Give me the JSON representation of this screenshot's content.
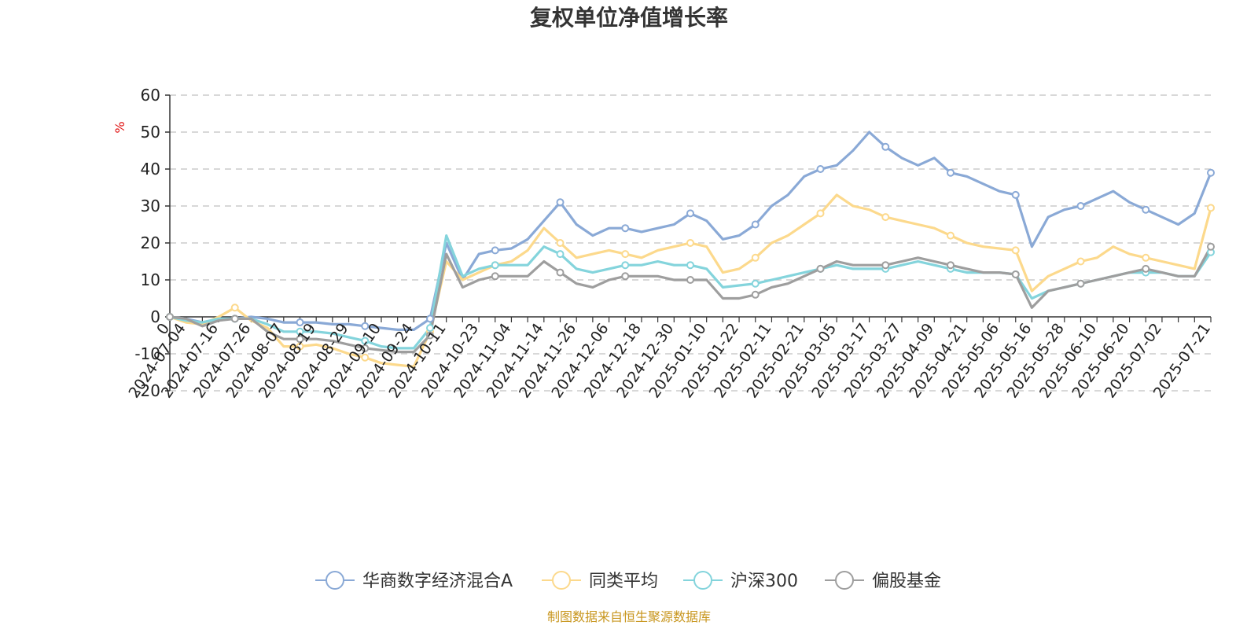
{
  "chart_data": {
    "type": "line",
    "title": "复权单位净值增长率",
    "ylabel": "%",
    "ylim": [
      -20,
      60
    ],
    "yticks": [
      -20,
      -10,
      0,
      10,
      20,
      30,
      40,
      50,
      60
    ],
    "grid": true,
    "legend_position": "bottom",
    "x_tick_labels": [
      "0",
      "2024-07-04",
      "2024-07-16",
      "2024-07-26",
      "2024-08-07",
      "2024-08-19",
      "2024-08-29",
      "2024-09-10",
      "2024-09-24",
      "2024-10-11",
      "2024-10-23",
      "2024-11-04",
      "2024-11-14",
      "2024-11-26",
      "2024-12-06",
      "2024-12-18",
      "2024-12-30",
      "2025-01-10",
      "2025-01-22",
      "2025-02-11",
      "2025-02-21",
      "2025-03-05",
      "2025-03-17",
      "2025-03-27",
      "2025-04-09",
      "2025-04-21",
      "2025-05-06",
      "2025-05-16",
      "2025-05-28",
      "2025-06-10",
      "2025-06-20",
      "2025-07-02",
      "2025-07-21"
    ],
    "x_tick_positions": [
      0,
      1,
      3,
      5,
      7,
      9,
      11,
      13,
      15,
      17,
      19,
      21,
      23,
      25,
      27,
      29,
      31,
      33,
      35,
      37,
      39,
      41,
      43,
      45,
      47,
      49,
      51,
      53,
      55,
      57,
      59,
      61,
      64
    ],
    "x": [
      0,
      1,
      2,
      3,
      4,
      5,
      6,
      7,
      8,
      9,
      10,
      11,
      12,
      13,
      14,
      15,
      16,
      17,
      18,
      19,
      20,
      21,
      22,
      23,
      24,
      25,
      26,
      27,
      28,
      29,
      30,
      31,
      32,
      33,
      34,
      35,
      36,
      37,
      38,
      39,
      40,
      41,
      42,
      43,
      44,
      45,
      46,
      47,
      48,
      49,
      50,
      51,
      52,
      53,
      54,
      55,
      56,
      57,
      58,
      59,
      60,
      61,
      62,
      63,
      64
    ],
    "series": [
      {
        "name": "华商数字经济混合A",
        "color": "#8aa9d6",
        "values": [
          0,
          -0.5,
          -1.5,
          -0.5,
          -0.5,
          0,
          -0.5,
          -1.5,
          -1.5,
          -1.5,
          -2,
          -2,
          -2.5,
          -3,
          -3.5,
          -3.5,
          -0.5,
          20,
          10,
          17,
          18,
          18.5,
          21,
          26,
          31,
          25,
          22,
          24,
          24,
          23,
          24,
          25,
          28,
          26,
          21,
          22,
          25,
          30,
          33,
          38,
          40,
          41,
          45,
          50,
          46,
          43,
          41,
          43,
          39,
          38,
          36,
          34,
          33,
          19,
          27,
          29,
          30,
          32,
          34,
          31,
          29,
          27,
          25,
          28,
          39
        ]
      },
      {
        "name": "同类平均",
        "color": "#fcd98c",
        "values": [
          0,
          -1.5,
          -2,
          0,
          2.5,
          -1,
          -3,
          -8,
          -8,
          -7.5,
          -8.5,
          -10,
          -11,
          -12.5,
          -13,
          -13.5,
          -4,
          15,
          10,
          12,
          14,
          15,
          18,
          24,
          20,
          16,
          17,
          18,
          17,
          16,
          18,
          19,
          20,
          19,
          12,
          13,
          16,
          20,
          22,
          25,
          28,
          33,
          30,
          29,
          27,
          26,
          25,
          24,
          22,
          20,
          19,
          18.5,
          18,
          7,
          11,
          13,
          15,
          16,
          19,
          17,
          16,
          15,
          14,
          13,
          29.5
        ]
      },
      {
        "name": "沪深300",
        "color": "#84d4dc",
        "values": [
          0,
          -1,
          -1.5,
          -0.5,
          -0.5,
          -0.5,
          -2,
          -4,
          -4,
          -4,
          -4.5,
          -5.5,
          -6.5,
          -8,
          -8.5,
          -8.5,
          -3,
          22,
          11,
          13,
          14,
          14,
          14,
          19,
          17,
          13,
          12,
          13,
          14,
          14,
          15,
          14,
          14,
          13,
          8,
          8.5,
          9,
          10,
          11,
          12,
          13,
          14,
          13,
          13,
          13,
          14,
          15,
          14,
          13,
          12,
          12,
          12,
          11.5,
          5,
          7,
          8,
          9,
          10,
          11,
          12,
          12,
          12,
          11,
          11,
          17.5
        ]
      },
      {
        "name": "偏股基金",
        "color": "#9e9e9e",
        "values": [
          0,
          -0.5,
          -2.5,
          -1,
          -0.5,
          -0.5,
          -4,
          -6,
          -6,
          -6,
          -6.5,
          -7.5,
          -8.5,
          -9,
          -9.5,
          -9.5,
          -5,
          17,
          8,
          10,
          11,
          11,
          11,
          15,
          12,
          9,
          8,
          10,
          11,
          11,
          11,
          10,
          10,
          10,
          5,
          5,
          6,
          8,
          9,
          11,
          13,
          15,
          14,
          14,
          14,
          15,
          16,
          15,
          14,
          13,
          12,
          12,
          11.5,
          2.5,
          7,
          8,
          9,
          10,
          11,
          12,
          13,
          12,
          11,
          11,
          19
        ]
      }
    ]
  },
  "legend": {
    "items": [
      "华商数字经济混合A",
      "同类平均",
      "沪深300",
      "偏股基金"
    ]
  },
  "footer": {
    "source": "制图数据来自恒生聚源数据库"
  }
}
